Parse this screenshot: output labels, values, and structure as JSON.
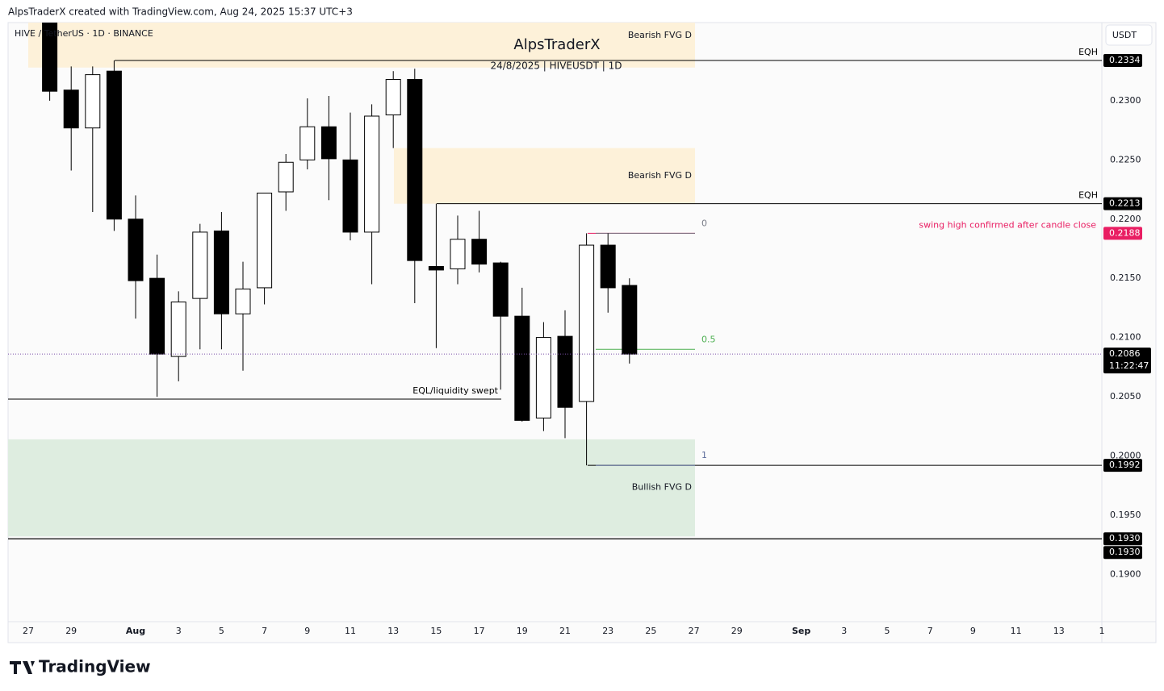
{
  "header": {
    "author_line": "AlpsTraderX created with TradingView.com, Aug 24, 2025 15:37 UTC+3",
    "symbol": "HIVE / TetherUS · 1D · BINANCE",
    "currency": "USDT",
    "logo": "TradingView"
  },
  "chart_data": {
    "type": "candlestick",
    "title": "AlpsTraderX",
    "subtitle": "24/8/2025 | HIVEUSDT | 1D",
    "categories": [
      "27",
      null,
      "29",
      null,
      null,
      "Aug",
      null,
      "3",
      null,
      "5",
      null,
      "7",
      null,
      "9",
      null,
      "11",
      null,
      "13",
      null,
      "15",
      null,
      "17",
      null,
      "19",
      null,
      "21",
      null,
      "23",
      null,
      "25",
      null,
      "27",
      null,
      "29",
      null,
      null,
      "Sep",
      null,
      "3",
      null,
      "5",
      null,
      "7",
      null,
      "9",
      null,
      "11",
      null,
      "13",
      null,
      "1"
    ],
    "open": [
      null,
      0.237,
      0.2309,
      0.2277,
      0.2325,
      0.22,
      0.215,
      0.2084,
      0.2133,
      0.219,
      0.212,
      0.2142,
      0.2223,
      0.225,
      0.2278,
      0.225,
      0.2189,
      0.2288,
      0.2318,
      0.216,
      0.2158,
      0.2183,
      0.2163,
      0.2118,
      0.2032,
      0.2101,
      0.2046,
      0.2178,
      0.2144,
      null,
      null,
      null,
      null,
      null,
      null,
      null,
      null,
      null,
      null,
      null,
      null,
      null,
      null,
      null,
      null,
      null,
      null,
      null,
      null,
      null,
      null
    ],
    "high": [
      null,
      0.238,
      0.2329,
      0.2329,
      0.2334,
      0.222,
      0.217,
      0.2139,
      0.2196,
      0.2206,
      0.2164,
      0.2222,
      0.2255,
      0.2302,
      0.2304,
      0.229,
      0.2297,
      0.2325,
      0.2327,
      0.2213,
      0.2203,
      0.2207,
      0.2164,
      0.2142,
      0.2113,
      0.2123,
      0.2188,
      0.2188,
      0.215,
      null,
      null,
      null,
      null,
      null,
      null,
      null,
      null,
      null,
      null,
      null,
      null,
      null,
      null,
      null,
      null,
      null,
      null,
      null,
      null,
      null,
      null
    ],
    "low": [
      null,
      0.23,
      0.2241,
      0.2206,
      0.219,
      0.2116,
      0.205,
      0.2063,
      0.209,
      0.209,
      0.2072,
      0.2128,
      0.2207,
      0.2242,
      0.2216,
      0.2182,
      0.2145,
      0.226,
      0.2129,
      0.2091,
      0.2145,
      0.2155,
      0.2056,
      0.2029,
      0.2021,
      0.2015,
      0.1992,
      0.2121,
      0.2078,
      null,
      null,
      null,
      null,
      null,
      null,
      null,
      null,
      null,
      null,
      null,
      null,
      null,
      null,
      null,
      null,
      null,
      null,
      null,
      null,
      null,
      null
    ],
    "close": [
      null,
      0.2308,
      0.2277,
      0.2322,
      0.22,
      0.2148,
      0.2086,
      0.213,
      0.2189,
      0.212,
      0.2141,
      0.2222,
      0.2248,
      0.2278,
      0.2251,
      0.2189,
      0.2287,
      0.2318,
      0.2165,
      0.2157,
      0.2183,
      0.2162,
      0.2118,
      0.203,
      0.21,
      0.2041,
      0.2178,
      0.2142,
      0.2086,
      null,
      null,
      null,
      null,
      null,
      null,
      null,
      null,
      null,
      null,
      null,
      null,
      null,
      null,
      null,
      null,
      null,
      null,
      null,
      null,
      null,
      null
    ],
    "up_color": "#ffffff",
    "down_color": "#000000",
    "ylim": [
      0.186,
      0.2366
    ],
    "yticks": [
      {
        "value": 0.19,
        "label": "0.1900"
      },
      {
        "value": 0.195,
        "label": "0.1950"
      },
      {
        "value": 0.2,
        "label": "0.2000"
      },
      {
        "value": 0.205,
        "label": "0.2050"
      },
      {
        "value": 0.21,
        "label": "0.2100"
      },
      {
        "value": 0.215,
        "label": "0.2150"
      },
      {
        "value": 0.22,
        "label": "0.2200"
      },
      {
        "value": 0.225,
        "label": "0.2250"
      },
      {
        "value": 0.23,
        "label": "0.2300"
      }
    ],
    "grid": false,
    "zones": [
      {
        "name": "Bearish FVG D",
        "top": 0.2366,
        "bottom": 0.2328,
        "color": "#fdf1d9"
      },
      {
        "name": "Bearish FVG D",
        "top": 0.226,
        "bottom": 0.2213,
        "color": "#fdf1d9"
      },
      {
        "name": "Bullish FVG D",
        "top": 0.2014,
        "bottom": 0.1932,
        "color": "#deede0"
      }
    ],
    "levels": [
      {
        "name": "EQH",
        "value": 0.2334,
        "color": "#000000",
        "tag": true
      },
      {
        "name": "EQH",
        "value": 0.2213,
        "color": "#000000",
        "tag": true
      },
      {
        "name": "swing high confirmed after candle close",
        "value": 0.2188,
        "color": "#e91e63",
        "tag": true
      },
      {
        "value": 0.1992,
        "color": "#000000",
        "tag": true
      },
      {
        "name": "EQL/liquidity swept",
        "value": 0.2048,
        "color": "#000000",
        "tag": false
      },
      {
        "value": 0.193,
        "label": "0.1930",
        "color": "#000000",
        "tag": true
      },
      {
        "value": 0.193,
        "label": "0.1930",
        "color": "#000000",
        "tag": true
      }
    ],
    "fib": [
      {
        "ratio": 0,
        "value": 0.2188,
        "color": "#787b86"
      },
      {
        "ratio": 0.5,
        "value": 0.209,
        "color": "#4caf50"
      },
      {
        "ratio": 1,
        "value": 0.1992,
        "color": "#5b6b9a"
      }
    ],
    "last_price": 0.2086,
    "countdown": "11:22:47"
  }
}
